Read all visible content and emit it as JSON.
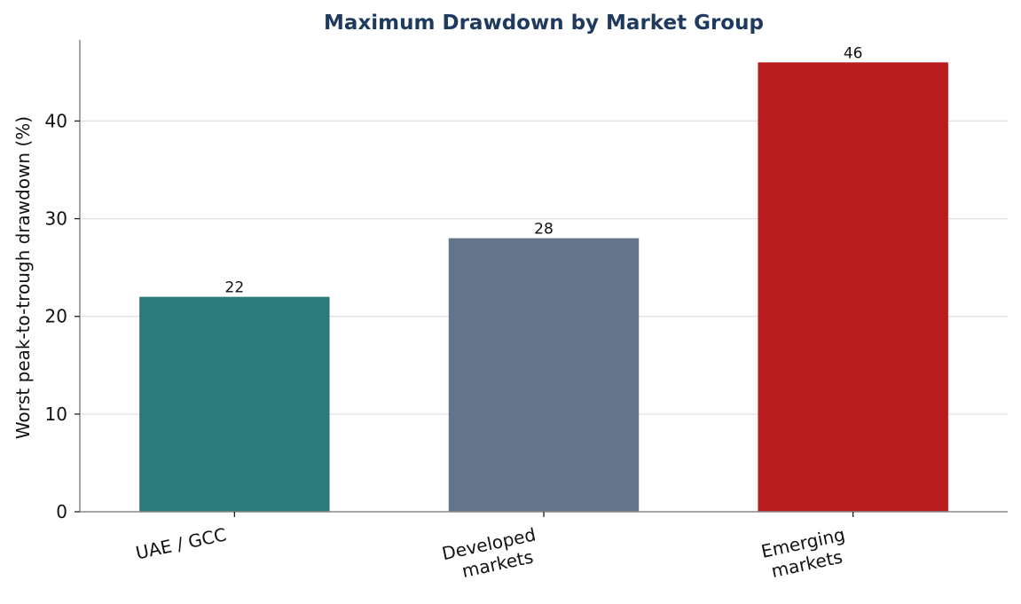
{
  "chart_data": {
    "type": "bar",
    "title": "Maximum Drawdown by Market Group",
    "xlabel": "",
    "ylabel": "Worst peak-to-trough drawdown (%)",
    "categories": [
      [
        "UAE / GCC"
      ],
      [
        "Developed",
        "markets"
      ],
      [
        "Emerging",
        "markets"
      ]
    ],
    "values": [
      22,
      28,
      46
    ],
    "data_labels": [
      "22",
      "28",
      "46"
    ],
    "colors": [
      "#2c7a7a",
      "#64748b",
      "#b91c1c"
    ],
    "ylim": [
      0,
      48.3
    ],
    "yticks": [
      0,
      10,
      20,
      30,
      40
    ],
    "grid": "horizontal",
    "legend": "none"
  },
  "style": {
    "title_color": "#1e3a5f",
    "grid_color": "#e2e2e2",
    "axis_color": "#888888"
  }
}
